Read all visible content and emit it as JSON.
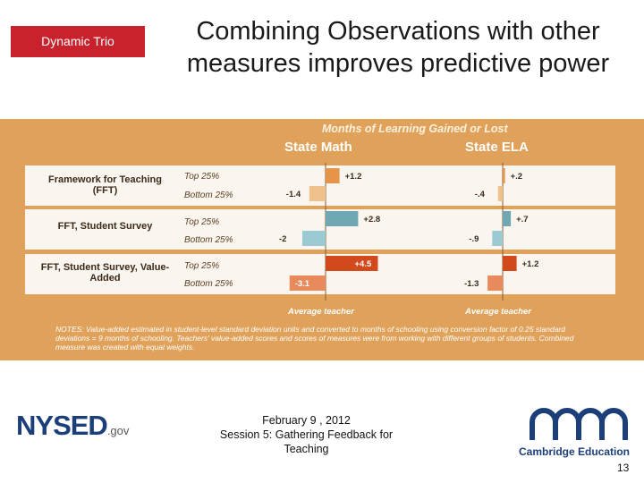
{
  "header": {
    "tag": "Dynamic Trio",
    "title_line1": "Combining Observations with other",
    "title_line2": "measures improves predictive power"
  },
  "chart_data": {
    "type": "bar",
    "title": "Months of Learning Gained or Lost",
    "panels": [
      "State Math",
      "State ELA"
    ],
    "groups": [
      "Framework for Teaching (FFT)",
      "FFT, Student Survey",
      "FFT, Student Survey, Value-Added"
    ],
    "row_labels": [
      "Top 25%",
      "Bottom 25%"
    ],
    "baseline_label": "Average teacher",
    "series": [
      {
        "name": "State Math",
        "values": [
          [
            1.2,
            -1.4
          ],
          [
            2.8,
            -2.0
          ],
          [
            4.5,
            -3.1
          ]
        ],
        "labels": [
          [
            "+1.2",
            "-1.4"
          ],
          [
            "+2.8",
            "-2"
          ],
          [
            "+4.5",
            "-3.1"
          ]
        ]
      },
      {
        "name": "State ELA",
        "values": [
          [
            0.2,
            -0.4
          ],
          [
            0.7,
            -0.9
          ],
          [
            1.2,
            -1.3
          ]
        ],
        "labels": [
          [
            "+.2",
            "-.4"
          ],
          [
            "+.7",
            "-.9"
          ],
          [
            "+1.2",
            "-1.3"
          ]
        ]
      }
    ],
    "notes": "NOTES: Value-added estimated in student-level standard deviation units and converted to months of schooling using conversion factor of 0.25 standard deviations = 9 months of schooling. Teachers' value-added scores and scores of measures were from working with different groups of students. Combined measure was created with equal weights."
  },
  "colors": {
    "panel_bg": "#e0a25a",
    "band_bg": "#faf6ef",
    "fft": "#e6944a",
    "fft_bottom": "#eec08a",
    "survey": "#6fa7b3",
    "survey_bottom": "#9ccad3",
    "va": "#d24a1c",
    "va_bottom": "#e88a5c"
  },
  "footer": {
    "logo": "NYSED",
    "logo_suffix": ".gov",
    "date": "February 9 , 2012",
    "session": "Session 5: Gathering Feedback for Teaching",
    "partner": "Cambridge Education",
    "page": "13"
  }
}
